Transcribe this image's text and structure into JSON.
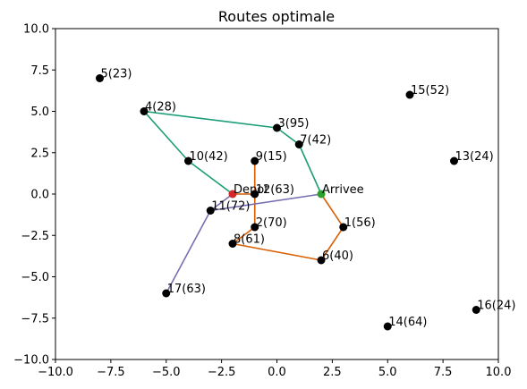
{
  "chart_data": {
    "type": "scatter",
    "title": "Routes optimale",
    "xlabel": "",
    "ylabel": "",
    "xlim": [
      -10.0,
      10.0
    ],
    "ylim": [
      -10.0,
      10.0
    ],
    "xticks": [
      -10.0,
      -7.5,
      -5.0,
      -2.5,
      0.0,
      2.5,
      5.0,
      7.5,
      10.0
    ],
    "yticks": [
      -10.0,
      -7.5,
      -5.0,
      -2.5,
      0.0,
      2.5,
      5.0,
      7.5,
      10.0
    ],
    "xtick_labels": [
      "−10.0",
      "−7.5",
      "−5.0",
      "−2.5",
      "0.0",
      "2.5",
      "5.0",
      "7.5",
      "10.0"
    ],
    "ytick_labels": [
      "−10.0",
      "−7.5",
      "−5.0",
      "−2.5",
      "0.0",
      "2.5",
      "5.0",
      "7.5",
      "10.0"
    ],
    "grid": false,
    "points": [
      {
        "label": "5(23)",
        "x": -8,
        "y": 7
      },
      {
        "label": "4(28)",
        "x": -6,
        "y": 5
      },
      {
        "label": "3(95)",
        "x": 0,
        "y": 4
      },
      {
        "label": "7(42)",
        "x": 1,
        "y": 3
      },
      {
        "label": "15(52)",
        "x": 6,
        "y": 6
      },
      {
        "label": "13(24)",
        "x": 8,
        "y": 2
      },
      {
        "label": "10(42)",
        "x": -4,
        "y": 2
      },
      {
        "label": "9(15)",
        "x": -1,
        "y": 2
      },
      {
        "label": "12(63)",
        "x": -1,
        "y": 0
      },
      {
        "label": "11(72)",
        "x": -3,
        "y": -1
      },
      {
        "label": "2(70)",
        "x": -1,
        "y": -2
      },
      {
        "label": "1(56)",
        "x": 3,
        "y": -2
      },
      {
        "label": "8(61)",
        "x": -2,
        "y": -3
      },
      {
        "label": "6(40)",
        "x": 2,
        "y": -4
      },
      {
        "label": "17(63)",
        "x": -5,
        "y": -6
      },
      {
        "label": "14(64)",
        "x": 5,
        "y": -8
      },
      {
        "label": "16(24)",
        "x": 9,
        "y": -7
      }
    ],
    "depot": {
      "label": "Depot",
      "x": -2,
      "y": 0,
      "color": "#d62728"
    },
    "arrival": {
      "label": "Arrivee",
      "x": 2,
      "y": 0,
      "color": "#2ca02c"
    },
    "routes": [
      {
        "color": "#1b9e77",
        "path": [
          [
            -2,
            0
          ],
          [
            -4,
            2
          ],
          [
            -6,
            5
          ],
          [
            0,
            4
          ],
          [
            1,
            3
          ],
          [
            2,
            0
          ]
        ]
      },
      {
        "color": "#d95f02",
        "path": [
          [
            -2,
            0
          ],
          [
            -1,
            0
          ],
          [
            -1,
            2
          ],
          [
            -1,
            -2
          ],
          [
            -2,
            -3
          ],
          [
            2,
            -4
          ],
          [
            3,
            -2
          ],
          [
            2,
            0
          ]
        ]
      },
      {
        "color": "#7570b3",
        "path": [
          [
            -2,
            0
          ],
          [
            -3,
            -1
          ],
          [
            -5,
            -6
          ],
          [
            -3,
            -1
          ],
          [
            2,
            0
          ]
        ]
      }
    ],
    "point_color": "#000000"
  }
}
